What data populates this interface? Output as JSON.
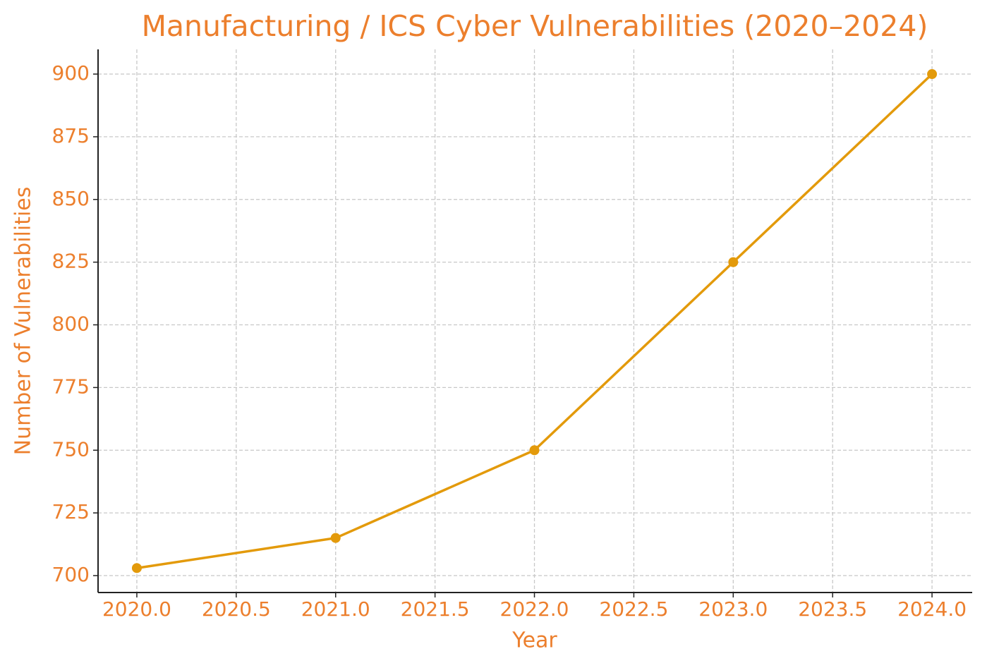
{
  "chart_data": {
    "type": "line",
    "title": "Manufacturing / ICS Cyber Vulnerabilities (2020–2024)",
    "x_label": "Year",
    "y_label": "Number of Vulnerabilities",
    "x": [
      2020,
      2021,
      2022,
      2023,
      2024
    ],
    "values": [
      703,
      715,
      750,
      825,
      900
    ],
    "color": "#e39a0b",
    "text_color": "#ec7f2d",
    "xlim": [
      2019.805,
      2024.202
    ],
    "xticks": [
      {
        "value": 2020,
        "label": "2020.0"
      },
      {
        "value": 2020.5,
        "label": "2020.5"
      },
      {
        "value": 2021,
        "label": "2021.0"
      },
      {
        "value": 2021.5,
        "label": "2021.5"
      },
      {
        "value": 2022,
        "label": "2022.0"
      },
      {
        "value": 2022.5,
        "label": "2022.5"
      },
      {
        "value": 2023,
        "label": "2023.0"
      },
      {
        "value": 2023.5,
        "label": "2023.5"
      },
      {
        "value": 2024,
        "label": "2024.0"
      }
    ],
    "ylim": [
      693.25,
      909.85
    ],
    "yticks": [
      700,
      725,
      750,
      775,
      800,
      825,
      850,
      875,
      900
    ],
    "grid": true
  }
}
